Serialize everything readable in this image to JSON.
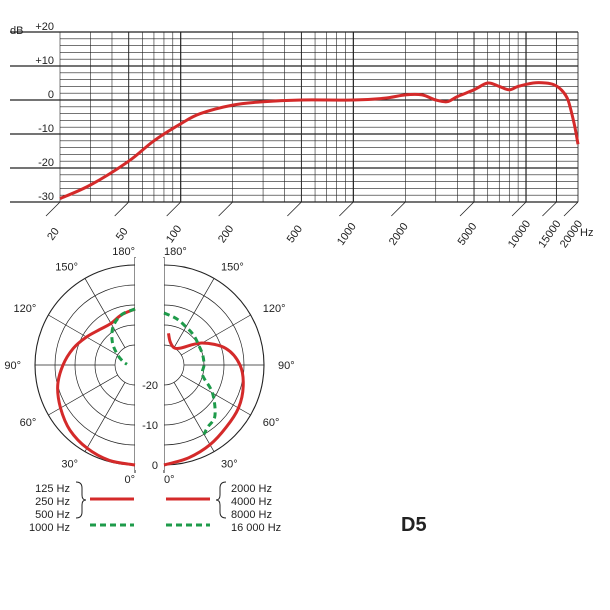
{
  "model_label": "D5",
  "colors": {
    "low": "#d42a2a",
    "high": "#1e9b4a",
    "grid": "#222222",
    "text": "#222222"
  },
  "chart_data": [
    {
      "type": "line",
      "xscale": "log",
      "xlim": [
        20,
        20000
      ],
      "ylim": [
        -30,
        20
      ],
      "y_unit": "dB",
      "x_unit": "Hz",
      "y_tick_labels": [
        "+20",
        "+10",
        "0",
        "-10",
        "-20",
        "-30"
      ],
      "y_ticks": [
        20,
        10,
        0,
        -10,
        -20,
        -30
      ],
      "x_tick_labels": [
        "20",
        "50",
        "100",
        "200",
        "500",
        "1000",
        "2000",
        "5000",
        "10000",
        "15000",
        "20000"
      ],
      "x_ticks": [
        20,
        50,
        100,
        200,
        500,
        1000,
        2000,
        5000,
        10000,
        15000,
        20000
      ],
      "grid": true,
      "series": [
        {
          "x": [
            20,
            30,
            50,
            70,
            100,
            130,
            200,
            300,
            500,
            1000,
            1500,
            2000,
            2500,
            3000,
            3500,
            4000,
            5000,
            6000,
            7000,
            8000,
            9000,
            11000,
            13000,
            14500,
            16000,
            17500,
            19000,
            20000
          ],
          "y": [
            -29,
            -25,
            -18,
            -12,
            -7,
            -4,
            -1.5,
            -0.5,
            0,
            0,
            0.5,
            1.5,
            1.5,
            0,
            -0.5,
            1,
            3,
            5,
            4,
            3,
            4,
            5,
            5,
            4.5,
            3,
            0,
            -7,
            -13
          ]
        }
      ]
    },
    {
      "type": "polar",
      "r_unit": "dB",
      "r_tick_labels": [
        "0",
        "-10",
        "-20"
      ],
      "r_ticks": [
        0,
        -10,
        -20
      ],
      "r_range": [
        -25,
        0
      ],
      "angle_labels_left": [
        "180°",
        "150°",
        "120°",
        "90°",
        "60°",
        "30°",
        "0°"
      ],
      "angle_labels_right": [
        "180°",
        "150°",
        "120°",
        "90°",
        "60°",
        "30°",
        "0°"
      ],
      "angle_ticks_deg": [
        180,
        150,
        120,
        90,
        60,
        30,
        0
      ],
      "legend_left": [
        "125 Hz",
        "250 Hz",
        "500 Hz",
        "1000 Hz"
      ],
      "legend_right": [
        "2000 Hz",
        "4000 Hz",
        "8000 Hz",
        "16 000 Hz"
      ],
      "series": [
        {
          "side": "left",
          "style": "solid",
          "angles": [
            0,
            15,
            30,
            45,
            60,
            75,
            90,
            105,
            120,
            135,
            150,
            165,
            180
          ],
          "db": [
            0,
            -0.3,
            -1,
            -2,
            -3.5,
            -5,
            -7,
            -9,
            -11,
            -12.5,
            -13,
            -12,
            -11
          ]
        },
        {
          "side": "left",
          "style": "dashed",
          "angles": [
            180,
            165,
            150,
            135,
            120,
            105,
            95
          ],
          "db": [
            -11,
            -12,
            -14,
            -17,
            -20,
            -22,
            -23
          ]
        },
        {
          "side": "right",
          "style": "solid",
          "angles": [
            0,
            15,
            30,
            45,
            60,
            75,
            90,
            105,
            120,
            135,
            150,
            165,
            172
          ],
          "db": [
            0,
            -1,
            -2,
            -3,
            -3.5,
            -4.5,
            -6,
            -9,
            -14,
            -19,
            -20,
            -19,
            -17
          ]
        },
        {
          "side": "right",
          "style": "dashed",
          "angles": [
            180,
            165,
            150,
            135,
            120,
            105,
            90,
            75,
            60,
            45,
            35,
            30
          ],
          "db": [
            -12,
            -13,
            -14,
            -14.5,
            -15,
            -15,
            -15,
            -15,
            -11,
            -7,
            -6,
            -5
          ]
        }
      ]
    }
  ]
}
